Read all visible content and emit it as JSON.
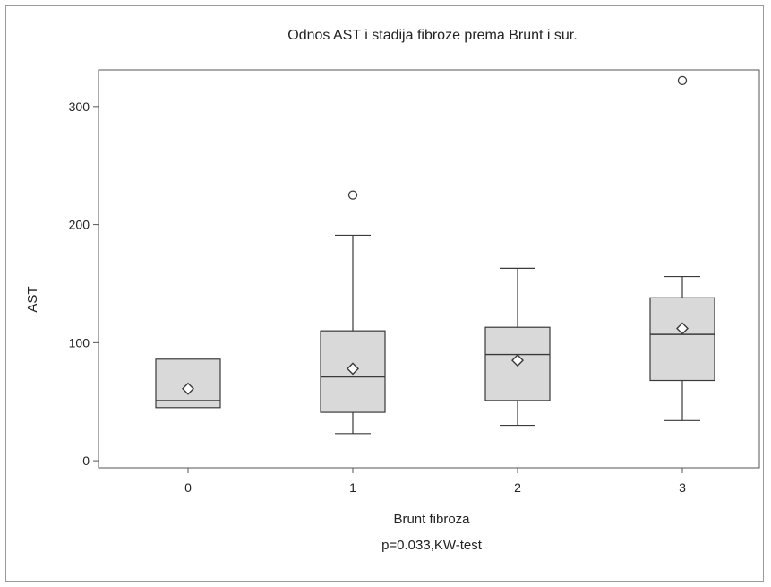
{
  "chart_data": {
    "type": "boxplot",
    "title": "Odnos AST i stadija fibroze prema Brunt i sur.",
    "xlabel": "Brunt fibroza",
    "ylabel": "AST",
    "annotation": "p=0.033,KW-test",
    "categories": [
      "0",
      "1",
      "2",
      "3"
    ],
    "ylim": [
      -6,
      331
    ],
    "yticks": [
      0,
      100,
      200,
      300
    ],
    "grid": false,
    "colors": {
      "box_fill": "#d9d9d9",
      "stroke": "#3a3a3a"
    },
    "boxes": [
      {
        "category": "0",
        "min": 45,
        "q1": 45,
        "median": 51,
        "q3": 86,
        "max": 86,
        "mean": 61,
        "outliers": []
      },
      {
        "category": "1",
        "min": 23,
        "q1": 41,
        "median": 71,
        "q3": 110,
        "max": 191,
        "mean": 78,
        "outliers": [
          225
        ]
      },
      {
        "category": "2",
        "min": 30,
        "q1": 51,
        "median": 90,
        "q3": 113,
        "max": 163,
        "mean": 85,
        "outliers": []
      },
      {
        "category": "3",
        "min": 34,
        "q1": 68,
        "median": 107,
        "q3": 138,
        "max": 156,
        "mean": 112,
        "outliers": [
          322
        ]
      }
    ]
  }
}
